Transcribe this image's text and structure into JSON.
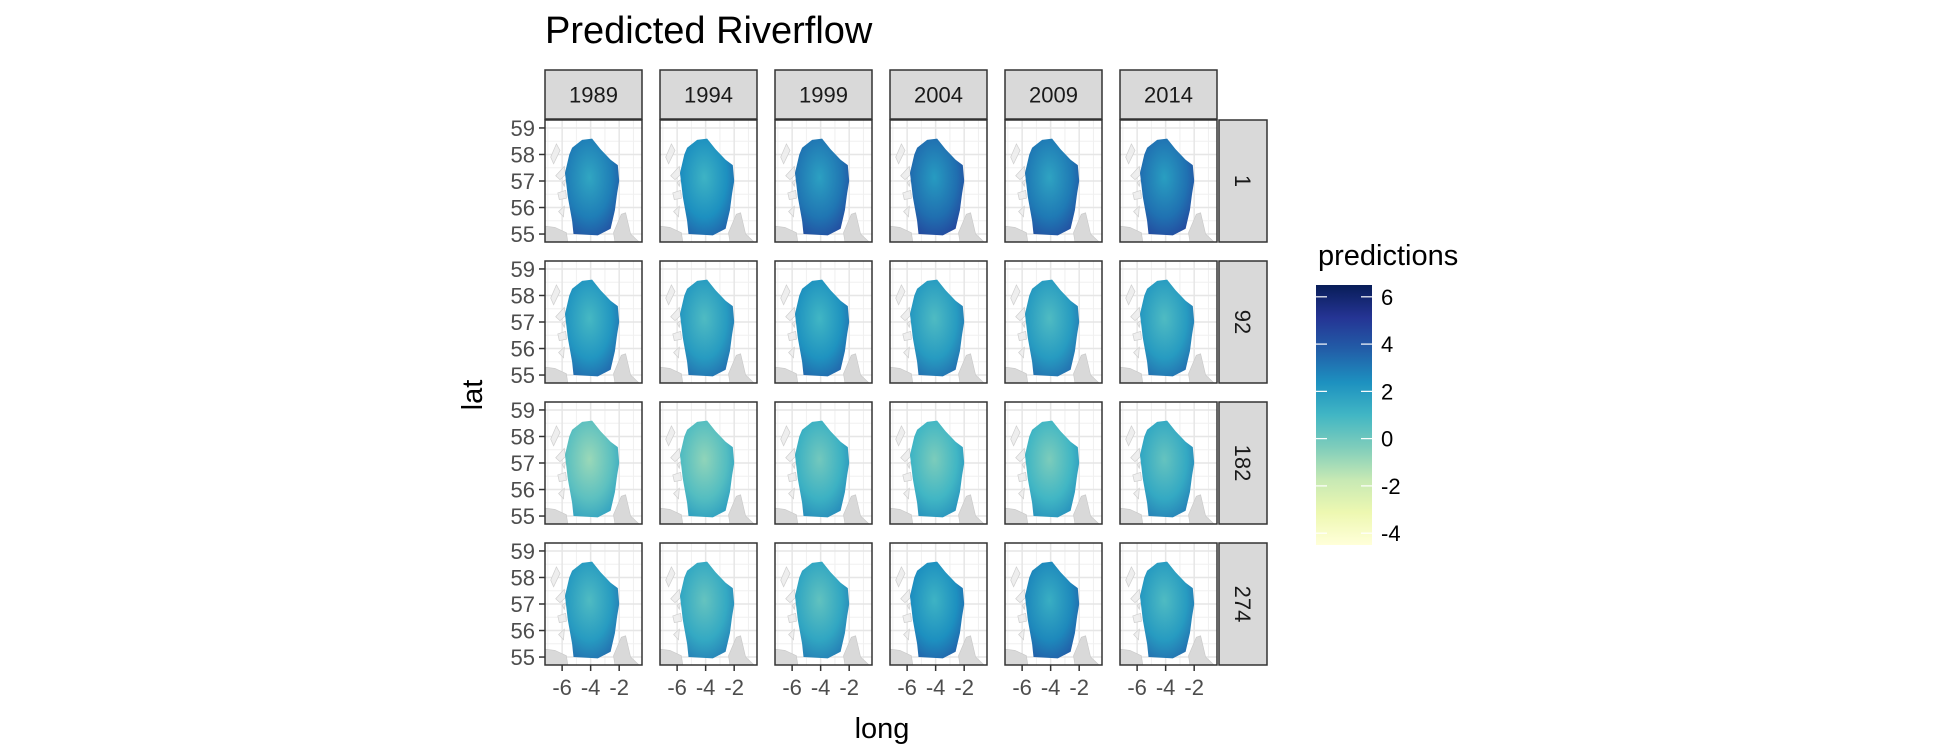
{
  "chart_data": {
    "type": "heatmap",
    "title": "Predicted Riverflow",
    "xlabel": "long",
    "ylabel": "lat",
    "facet_columns": [
      "1989",
      "1994",
      "1999",
      "2004",
      "2009",
      "2014"
    ],
    "facet_rows": [
      "1",
      "92",
      "182",
      "274"
    ],
    "x_ticks": [
      -6,
      -4,
      -2
    ],
    "x_tick_labels": [
      "-6",
      "-4",
      "-2"
    ],
    "y_ticks": [
      55,
      56,
      57,
      58,
      59
    ],
    "y_tick_labels": [
      "55",
      "56",
      "57",
      "58",
      "59"
    ],
    "xlim": [
      -7.2,
      -0.4
    ],
    "ylim": [
      54.7,
      59.3
    ],
    "grid": true,
    "legend": {
      "title": "predictions",
      "position": "right",
      "ticks": [
        6,
        4,
        2,
        0,
        -2,
        -4
      ],
      "tick_labels": [
        "6",
        "4",
        "2",
        "0",
        "-2",
        "-4"
      ],
      "range": [
        -4.5,
        6.5
      ],
      "colors": [
        "#ffffd9",
        "#edf8b1",
        "#c7e9b4",
        "#7fcdbb",
        "#41b6c4",
        "#1d91c0",
        "#225ea8",
        "#253494",
        "#081d58"
      ]
    },
    "approx_mean_prediction": [
      [
        2.9,
        2.4,
        3.1,
        3.3,
        3.0,
        3.2
      ],
      [
        2.2,
        2.0,
        2.3,
        2.0,
        2.0,
        2.0
      ],
      [
        0.4,
        0.6,
        1.2,
        1.0,
        1.0,
        1.5
      ],
      [
        2.0,
        1.5,
        1.6,
        2.4,
        2.6,
        2.0
      ]
    ]
  }
}
